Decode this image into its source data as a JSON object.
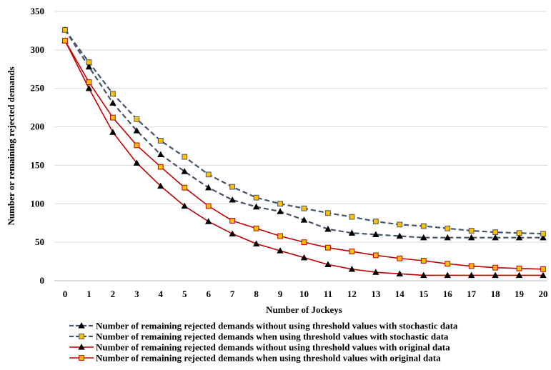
{
  "chart_data": {
    "type": "line",
    "title": "",
    "xlabel": "Number of Jockeys",
    "ylabel": "Number or remaining rejected demands",
    "ylim": [
      0,
      350
    ],
    "y_ticks": [
      "0",
      "50",
      "100",
      "150",
      "200",
      "250",
      "300",
      "350"
    ],
    "categories": [
      "0",
      "1",
      "2",
      "3",
      "4",
      "5",
      "6",
      "7",
      "8",
      "9",
      "10",
      "11",
      "12",
      "13",
      "14",
      "15",
      "16",
      "17",
      "18",
      "19",
      "20"
    ],
    "grid": "horizontal",
    "legend_position": "bottom",
    "series": [
      {
        "name": "Number of remaining rejected demands without using threshold values with stochastic data",
        "color": "#44546A",
        "dash": "dashed",
        "marker": "triangle",
        "marker_color": "#000000",
        "values": [
          326,
          278,
          231,
          195,
          164,
          142,
          121,
          105,
          96,
          90,
          79,
          67,
          62,
          60,
          58,
          56,
          56,
          56,
          56,
          56,
          56
        ]
      },
      {
        "name": "Number of remaining rejected demands when using threshold values with stochastic data",
        "color": "#44546A",
        "dash": "dashed",
        "marker": "square",
        "marker_color": "#FFC000",
        "values": [
          326,
          284,
          243,
          210,
          182,
          161,
          138,
          122,
          108,
          100,
          94,
          88,
          83,
          77,
          73,
          71,
          68,
          65,
          63,
          62,
          61
        ]
      },
      {
        "name": "Number of remaining rejected demands without using threshold values with original data",
        "color": "#C00000",
        "dash": "solid",
        "marker": "triangle",
        "marker_color": "#000000",
        "values": [
          312,
          250,
          193,
          153,
          123,
          97,
          77,
          61,
          48,
          39,
          30,
          21,
          15,
          11,
          9,
          7,
          7,
          7,
          7,
          7,
          7
        ]
      },
      {
        "name": "Number of remaining rejected demands when using threshold values with original data",
        "color": "#C00000",
        "dash": "solid",
        "marker": "square",
        "marker_color": "#FFC000",
        "values": [
          312,
          258,
          212,
          176,
          148,
          121,
          97,
          78,
          68,
          58,
          50,
          43,
          38,
          33,
          29,
          26,
          22,
          19,
          17,
          16,
          15
        ]
      }
    ]
  }
}
